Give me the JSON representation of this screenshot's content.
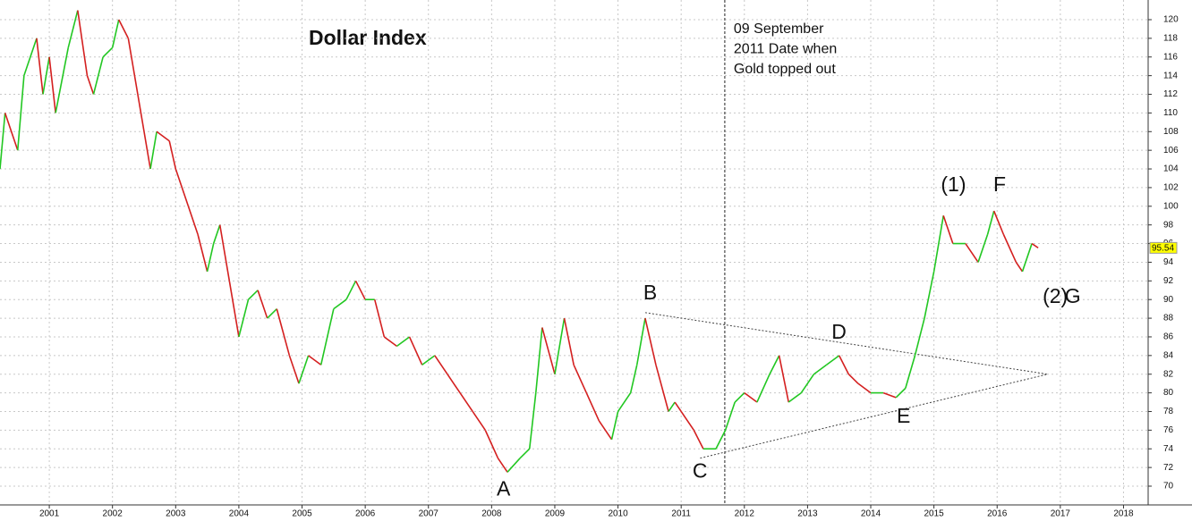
{
  "chart_data": {
    "type": "line",
    "title": "Dollar Index",
    "title_color": "#a3171f",
    "up_color": "#22c722",
    "down_color": "#d42020",
    "grid": true,
    "xlim": [
      2000.22,
      2018.39
    ],
    "ylim": [
      70,
      120.9
    ],
    "xticks": [
      2001,
      2002,
      2003,
      2004,
      2005,
      2006,
      2007,
      2008,
      2009,
      2010,
      2011,
      2012,
      2013,
      2014,
      2015,
      2016,
      2017,
      2018
    ],
    "yticks": [
      70,
      72,
      74,
      76,
      78,
      80,
      82,
      84,
      86,
      88,
      90,
      92,
      94,
      96,
      98,
      100,
      102,
      104,
      106,
      108,
      110,
      112,
      114,
      116,
      118,
      120
    ],
    "x": [
      2000.22,
      2000.3,
      2000.5,
      2000.6,
      2000.8,
      2000.9,
      2001.0,
      2001.1,
      2001.3,
      2001.45,
      2001.6,
      2001.7,
      2001.85,
      2002.0,
      2002.1,
      2002.25,
      2002.4,
      2002.5,
      2002.6,
      2002.7,
      2002.9,
      2003.0,
      2003.2,
      2003.35,
      2003.5,
      2003.6,
      2003.7,
      2003.85,
      2004.0,
      2004.15,
      2004.3,
      2004.45,
      2004.6,
      2004.8,
      2004.95,
      2005.1,
      2005.3,
      2005.5,
      2005.7,
      2005.85,
      2006.0,
      2006.15,
      2006.3,
      2006.5,
      2006.7,
      2006.9,
      2007.1,
      2007.3,
      2007.5,
      2007.7,
      2007.9,
      2008.1,
      2008.25,
      2008.45,
      2008.6,
      2008.7,
      2008.8,
      2009.0,
      2009.15,
      2009.3,
      2009.5,
      2009.7,
      2009.9,
      2010.0,
      2010.2,
      2010.3,
      2010.43,
      2010.6,
      2010.8,
      2010.9,
      2011.0,
      2011.2,
      2011.35,
      2011.55,
      2011.7,
      2011.85,
      2012.0,
      2012.2,
      2012.4,
      2012.55,
      2012.7,
      2012.9,
      2013.1,
      2013.3,
      2013.5,
      2013.65,
      2013.8,
      2014.0,
      2014.2,
      2014.4,
      2014.55,
      2014.7,
      2014.85,
      2015.0,
      2015.15,
      2015.3,
      2015.5,
      2015.7,
      2015.85,
      2015.95,
      2016.1,
      2016.3,
      2016.4,
      2016.55,
      2016.65
    ],
    "values": [
      104,
      110,
      106,
      114,
      118,
      112,
      116,
      110,
      117,
      121,
      114,
      112,
      116,
      117,
      120,
      118,
      112,
      108,
      104,
      108,
      107,
      104,
      100,
      97,
      93,
      96,
      98,
      92,
      86,
      90,
      91,
      88,
      89,
      84,
      81,
      84,
      83,
      89,
      90,
      92,
      90,
      90,
      86,
      85,
      86,
      83,
      84,
      82,
      80,
      78,
      76,
      73,
      71.5,
      73,
      74,
      80,
      87,
      82,
      88,
      83,
      80,
      77,
      75,
      78,
      80,
      83,
      88,
      83,
      78,
      79,
      78,
      76,
      74,
      74,
      76,
      79,
      80,
      79,
      82,
      84,
      79,
      80,
      82,
      83,
      84,
      82,
      81,
      80,
      80,
      79.5,
      80.5,
      84,
      88,
      93,
      99,
      96,
      96,
      94,
      97,
      99.5,
      97,
      94,
      93,
      96,
      95.54
    ],
    "event_line": {
      "x": 2011.69,
      "label": [
        "09 September",
        "2011 Date when",
        "Gold topped out"
      ]
    },
    "trendlines": [
      {
        "x": [
          2010.43,
          2016.8
        ],
        "y": [
          88.6,
          82
        ]
      },
      {
        "x": [
          2011.3,
          2016.8
        ],
        "y": [
          73,
          82
        ]
      }
    ],
    "annotations": [
      {
        "text": "A",
        "x": 2008.08,
        "y": 69.6,
        "color": "#a3171f"
      },
      {
        "text": "B",
        "x": 2010.4,
        "y": 90.6,
        "color": "#a3171f"
      },
      {
        "text": "C",
        "x": 2011.18,
        "y": 71.5,
        "color": "#a3171f"
      },
      {
        "text": "D",
        "x": 2013.38,
        "y": 86.4,
        "color": "#a3171f"
      },
      {
        "text": "E",
        "x": 2014.41,
        "y": 77.4,
        "color": "#a3171f"
      },
      {
        "text": "F",
        "x": 2015.94,
        "y": 102.2,
        "color": "#a3171f"
      },
      {
        "text": "(1)",
        "x": 2015.11,
        "y": 102.2,
        "color": "#111111"
      },
      {
        "text": "(2)",
        "x": 2016.72,
        "y": 90.2,
        "color": "#111111"
      },
      {
        "text": "G",
        "x": 2017.07,
        "y": 90.2,
        "color": "#a3171f"
      }
    ]
  }
}
